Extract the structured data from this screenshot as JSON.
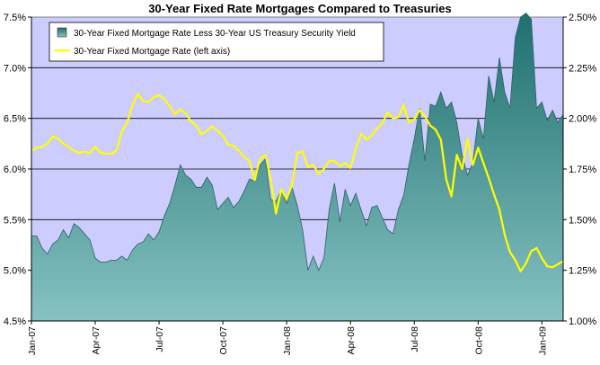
{
  "chart_data": {
    "type": "area",
    "title": "30-Year Fixed Rate Mortgages Compared to Treasuries",
    "colors": {
      "plot_background": "#ccccff",
      "spread_top": "#1f6f6f",
      "spread_bottom": "#86c2c2",
      "spread_outline": "#2f5f5f",
      "mortgage_line": "#ffff00",
      "gridline": "#000000"
    },
    "x_ticks": [
      "Jan-07",
      "Apr-07",
      "Jul-07",
      "Oct-07",
      "Jan-08",
      "Apr-08",
      "Jul-08",
      "Oct-08",
      "Jan-09"
    ],
    "x_tick_months": [
      0,
      3,
      6,
      9,
      12,
      15,
      18,
      21,
      24
    ],
    "x_range_months": [
      0,
      25.0
    ],
    "left_axis": {
      "ticks": [
        "4.5%",
        "5.0%",
        "5.5%",
        "6.0%",
        "6.5%",
        "7.0%",
        "7.5%"
      ],
      "tick_values": [
        4.5,
        5.0,
        5.5,
        6.0,
        6.5,
        7.0,
        7.5
      ],
      "ylim": [
        4.5,
        7.5
      ]
    },
    "right_axis": {
      "ticks": [
        "1.00%",
        "1.25%",
        "1.50%",
        "1.75%",
        "2.00%",
        "2.25%",
        "2.50%"
      ],
      "tick_values": [
        1.0,
        1.25,
        1.5,
        1.75,
        2.0,
        2.25,
        2.5
      ],
      "ylim": [
        1.0,
        2.5
      ]
    },
    "gridlines": [
      5.0,
      5.5,
      6.0,
      6.5,
      7.0
    ],
    "legend": {
      "placement": "top-left",
      "items": [
        "30-Year Fixed Mortgage Rate Less 30-Year US Treasury Security Yield",
        "30-Year Fixed Mortgage Rate (left axis)"
      ]
    },
    "series": [
      {
        "name": "30-Year Fixed Mortgage Rate Less 30-Year US Treasury Security Yield",
        "axis": "right",
        "x_months": [
          0.0,
          0.25,
          0.5,
          0.75,
          1.0,
          1.25,
          1.5,
          1.75,
          2.0,
          2.25,
          2.5,
          2.75,
          3.0,
          3.25,
          3.5,
          3.75,
          4.0,
          4.25,
          4.5,
          4.75,
          5.0,
          5.25,
          5.5,
          5.75,
          6.0,
          6.25,
          6.5,
          6.75,
          7.0,
          7.25,
          7.5,
          7.75,
          8.0,
          8.25,
          8.5,
          8.75,
          9.0,
          9.25,
          9.5,
          9.75,
          10.0,
          10.25,
          10.5,
          10.75,
          11.0,
          11.25,
          11.5,
          11.75,
          12.0,
          12.25,
          12.5,
          12.75,
          13.0,
          13.25,
          13.5,
          13.75,
          14.0,
          14.25,
          14.5,
          14.75,
          15.0,
          15.25,
          15.5,
          15.75,
          16.0,
          16.25,
          16.5,
          16.75,
          17.0,
          17.25,
          17.5,
          17.75,
          18.0,
          18.25,
          18.5,
          18.75,
          19.0,
          19.25,
          19.5,
          19.75,
          20.0,
          20.25,
          20.5,
          20.75,
          21.0,
          21.25,
          21.5,
          21.75,
          22.0,
          22.25,
          22.5,
          22.75,
          23.0,
          23.25,
          23.5,
          23.75,
          24.0,
          24.25,
          24.5,
          24.75,
          25.0
        ],
        "values": [
          1.42,
          1.42,
          1.36,
          1.33,
          1.38,
          1.4,
          1.45,
          1.41,
          1.48,
          1.46,
          1.43,
          1.4,
          1.31,
          1.29,
          1.29,
          1.3,
          1.3,
          1.32,
          1.3,
          1.35,
          1.38,
          1.39,
          1.43,
          1.4,
          1.44,
          1.52,
          1.58,
          1.67,
          1.77,
          1.72,
          1.7,
          1.66,
          1.66,
          1.71,
          1.67,
          1.55,
          1.58,
          1.61,
          1.56,
          1.59,
          1.64,
          1.7,
          1.69,
          1.77,
          1.8,
          1.6,
          1.59,
          1.65,
          1.58,
          1.66,
          1.57,
          1.45,
          1.25,
          1.32,
          1.25,
          1.31,
          1.55,
          1.68,
          1.49,
          1.65,
          1.57,
          1.63,
          1.55,
          1.47,
          1.56,
          1.57,
          1.51,
          1.45,
          1.43,
          1.55,
          1.62,
          1.77,
          1.9,
          2.05,
          1.79,
          2.07,
          2.06,
          2.13,
          2.05,
          2.08,
          1.98,
          1.82,
          1.72,
          1.78,
          2.0,
          1.9,
          2.21,
          2.08,
          2.3,
          2.13,
          2.05,
          2.4,
          2.5,
          2.52,
          2.49,
          2.05,
          2.08,
          1.99,
          2.04,
          1.98,
          2.02
        ],
        "color": "#2a7d7d"
      },
      {
        "name": "30-Year Fixed Mortgage Rate (left axis)",
        "axis": "left",
        "x_months": [
          0.0,
          0.25,
          0.5,
          0.75,
          1.0,
          1.25,
          1.5,
          1.75,
          2.0,
          2.25,
          2.5,
          2.75,
          3.0,
          3.25,
          3.5,
          3.75,
          4.0,
          4.25,
          4.5,
          4.75,
          5.0,
          5.25,
          5.5,
          5.75,
          6.0,
          6.25,
          6.5,
          6.75,
          7.0,
          7.25,
          7.5,
          7.75,
          8.0,
          8.25,
          8.5,
          8.75,
          9.0,
          9.25,
          9.5,
          9.75,
          10.0,
          10.25,
          10.5,
          10.75,
          11.0,
          11.25,
          11.5,
          11.75,
          12.0,
          12.25,
          12.5,
          12.75,
          13.0,
          13.25,
          13.5,
          13.75,
          14.0,
          14.25,
          14.5,
          14.75,
          15.0,
          15.25,
          15.5,
          15.75,
          16.0,
          16.25,
          16.5,
          16.75,
          17.0,
          17.25,
          17.5,
          17.75,
          18.0,
          18.25,
          18.5,
          18.75,
          19.0,
          19.25,
          19.5,
          19.75,
          20.0,
          20.25,
          20.5,
          20.75,
          21.0,
          21.25,
          21.5,
          21.75,
          22.0,
          22.25,
          22.5,
          22.75,
          23.0,
          23.25,
          23.5,
          23.75,
          24.0,
          24.25,
          24.5,
          24.75,
          25.0
        ],
        "values": [
          6.18,
          6.21,
          6.22,
          6.25,
          6.32,
          6.3,
          6.25,
          6.22,
          6.18,
          6.16,
          6.17,
          6.16,
          6.22,
          6.16,
          6.15,
          6.15,
          6.18,
          6.37,
          6.46,
          6.63,
          6.74,
          6.67,
          6.66,
          6.71,
          6.73,
          6.69,
          6.62,
          6.54,
          6.59,
          6.55,
          6.47,
          6.43,
          6.34,
          6.38,
          6.42,
          6.38,
          6.33,
          6.24,
          6.23,
          6.18,
          6.12,
          6.08,
          5.89,
          6.1,
          6.14,
          5.9,
          5.56,
          5.8,
          5.7,
          5.84,
          6.16,
          6.17,
          6.02,
          6.04,
          5.95,
          6.0,
          6.08,
          6.08,
          6.03,
          6.06,
          6.01,
          6.2,
          6.35,
          6.29,
          6.33,
          6.4,
          6.45,
          6.56,
          6.5,
          6.51,
          6.63,
          6.46,
          6.49,
          6.58,
          6.52,
          6.43,
          6.39,
          6.29,
          5.9,
          5.73,
          6.14,
          6.0,
          6.3,
          6.04,
          6.21,
          6.06,
          5.91,
          5.75,
          5.6,
          5.35,
          5.18,
          5.1,
          4.99,
          5.07,
          5.19,
          5.22,
          5.12,
          5.04,
          5.03,
          5.06,
          5.09
        ],
        "color": "#ffff00"
      }
    ]
  }
}
